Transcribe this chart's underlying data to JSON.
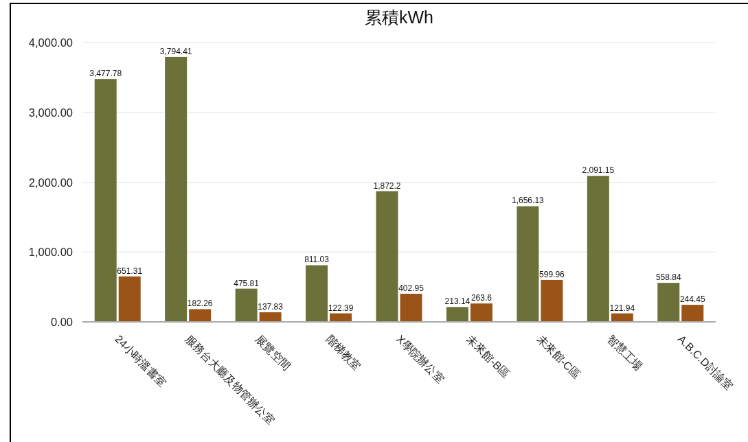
{
  "chart_data": {
    "type": "bar",
    "title": "累積kWh",
    "categories": [
      "24小時溫書室",
      "服務台大廳及物管辦公室",
      "展覽空間",
      "階梯教室",
      "X學院辦公室",
      "未來館-B區",
      "未來館-C區",
      "智慧工場",
      "A.B.C.D討論室"
    ],
    "series": [
      {
        "color": "#6b7139",
        "values": [
          3477.78,
          3794.41,
          475.81,
          811.03,
          1872.2,
          213.14,
          1656.13,
          2091.15,
          558.84
        ],
        "value_labels": [
          "3,477.78",
          "3,794.41",
          "475.81",
          "811.03",
          "1,872.2",
          "213.14",
          "1,656.13",
          "2,091.15",
          "558.84"
        ]
      },
      {
        "color": "#9a5418",
        "values": [
          651.31,
          182.26,
          137.83,
          122.39,
          402.95,
          263.6,
          599.96,
          121.94,
          244.45
        ],
        "value_labels": [
          "651.31",
          "182.26",
          "137.83",
          "122.39",
          "402.95",
          "263.6",
          "599.96",
          "121.94",
          "244.45"
        ]
      }
    ],
    "ylim": [
      0,
      4000
    ],
    "yticks": [
      {
        "value": 0,
        "label": "0.00"
      },
      {
        "value": 1000,
        "label": "1,000.00"
      },
      {
        "value": 2000,
        "label": "2,000.00"
      },
      {
        "value": 3000,
        "label": "3,000.00"
      },
      {
        "value": 4000,
        "label": "4,000.00"
      }
    ],
    "grid": "y"
  }
}
